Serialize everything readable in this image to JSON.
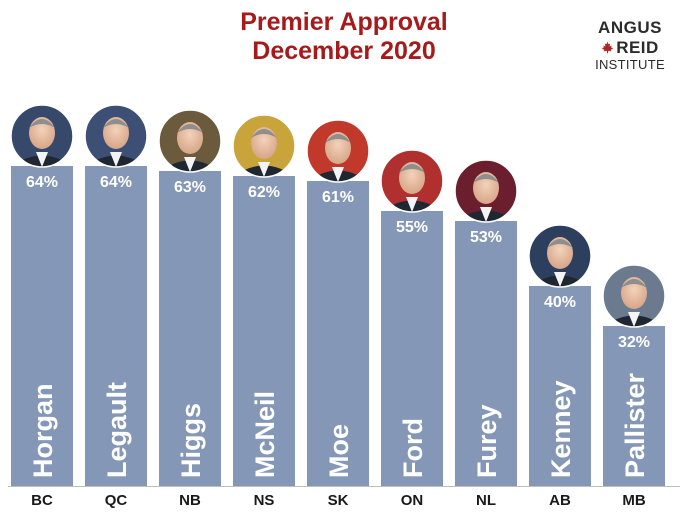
{
  "chart_data": {
    "type": "bar",
    "title": "Premier Approval",
    "subtitle": "December 2020",
    "categories": [
      "BC",
      "QC",
      "NB",
      "NS",
      "SK",
      "ON",
      "NL",
      "AB",
      "MB"
    ],
    "names": [
      "Horgan",
      "Legault",
      "Higgs",
      "McNeil",
      "Moe",
      "Ford",
      "Furey",
      "Kenney",
      "Pallister"
    ],
    "values": [
      64,
      64,
      63,
      62,
      61,
      55,
      53,
      40,
      32
    ],
    "value_labels": [
      "64%",
      "64%",
      "63%",
      "62%",
      "61%",
      "55%",
      "53%",
      "40%",
      "32%"
    ],
    "ylim": [
      0,
      100
    ],
    "grid": false,
    "legend": "none"
  },
  "logo": {
    "line1": "ANGUS",
    "line2": "REID",
    "line3": "INSTITUTE"
  },
  "colors": {
    "bar": "#8497b6",
    "title": "#a51b1b",
    "axis_text": "#1a1a1a",
    "baseline": "#bdbdbd",
    "leaf": "#b5241f",
    "photo_bg": [
      "#37496b",
      "#3d4f74",
      "#6b5a3c",
      "#c8a43a",
      "#c0392b",
      "#b03030",
      "#6a1e2e",
      "#2d3f5f",
      "#6b7a8e"
    ]
  }
}
